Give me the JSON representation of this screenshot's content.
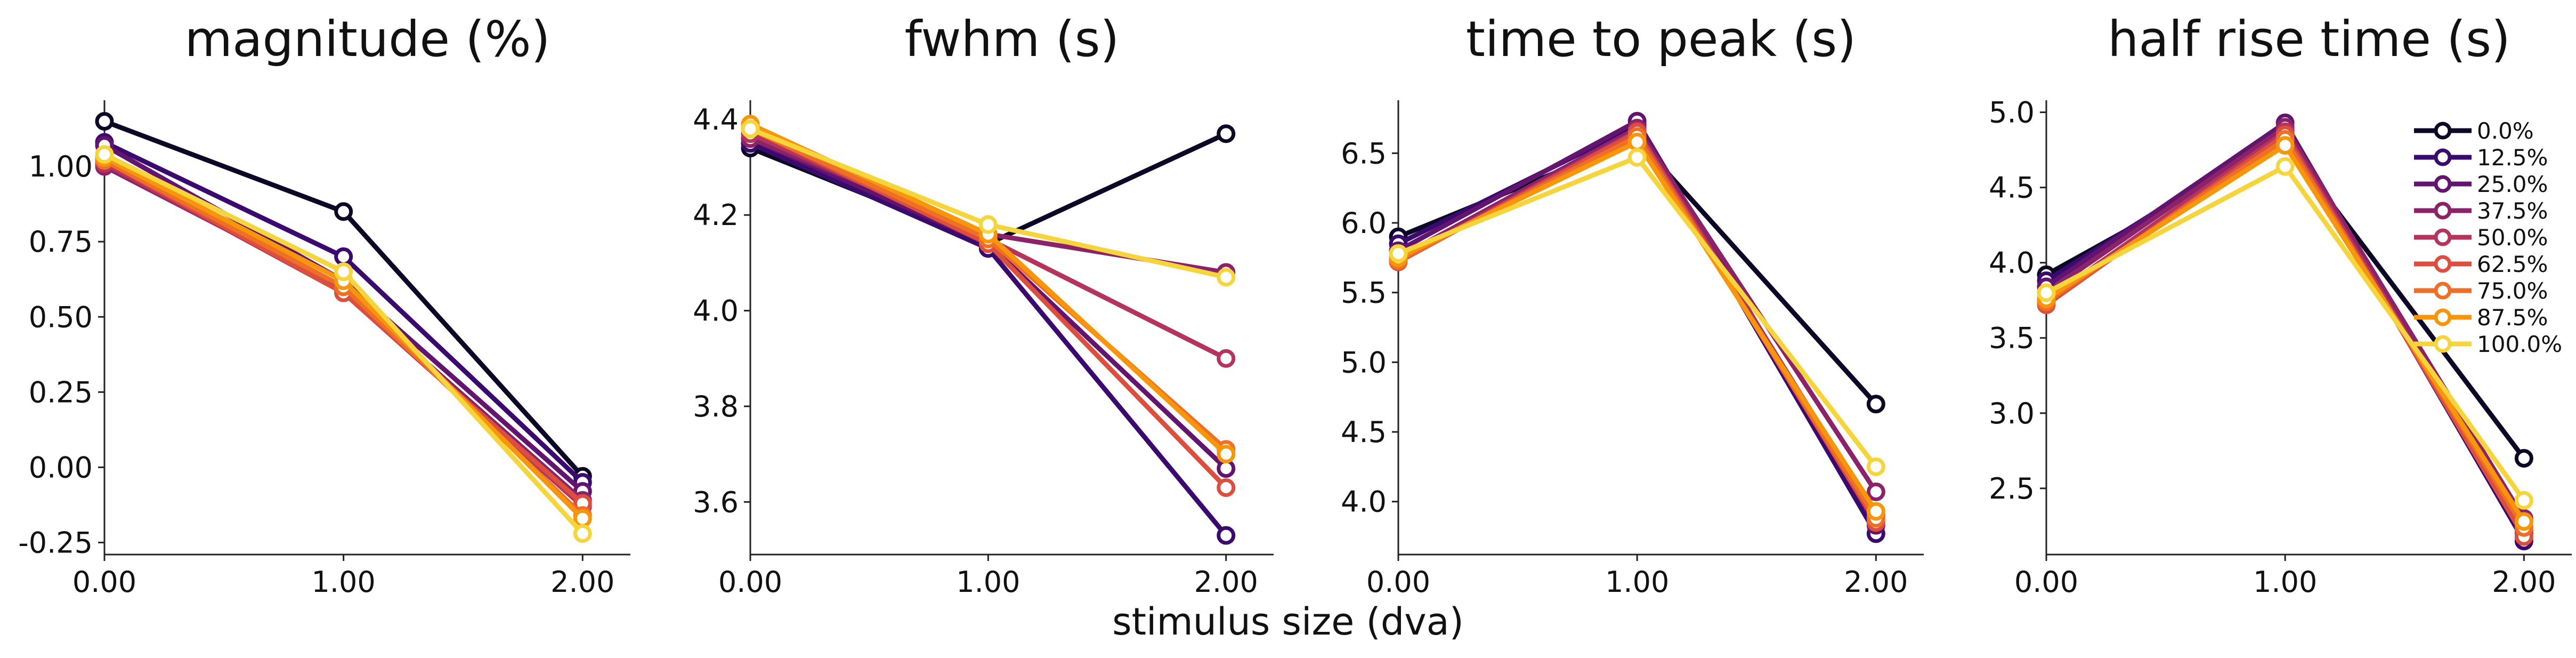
{
  "figure": {
    "xlabel": "stimulus size (dva)"
  },
  "chart_data": [
    {
      "type": "line",
      "title": "magnitude (%)",
      "x": [
        0,
        1,
        2
      ],
      "xticks": [
        "0.00",
        "1.00",
        "2.00"
      ],
      "yticks": [
        "-0.25",
        "0.00",
        "0.25",
        "0.50",
        "0.75",
        "1.00"
      ],
      "ylim": [
        -0.29,
        1.22
      ],
      "series": [
        {
          "name": "0.0%",
          "color": "#0c0826",
          "values": [
            1.15,
            0.85,
            -0.03
          ]
        },
        {
          "name": "12.5%",
          "color": "#3b0a6e",
          "values": [
            1.08,
            0.7,
            -0.05
          ]
        },
        {
          "name": "25.0%",
          "color": "#62146e",
          "values": [
            1.07,
            0.62,
            -0.08
          ]
        },
        {
          "name": "37.5%",
          "color": "#8c2369",
          "values": [
            1.0,
            0.59,
            -0.11
          ]
        },
        {
          "name": "50.0%",
          "color": "#b5345d",
          "values": [
            1.01,
            0.58,
            -0.13
          ]
        },
        {
          "name": "62.5%",
          "color": "#dc4f3f",
          "values": [
            1.02,
            0.58,
            -0.12
          ]
        },
        {
          "name": "75.0%",
          "color": "#ee6f25",
          "values": [
            1.02,
            0.6,
            -0.16
          ]
        },
        {
          "name": "87.5%",
          "color": "#f8960b",
          "values": [
            1.03,
            0.62,
            -0.17
          ]
        },
        {
          "name": "100.0%",
          "color": "#f5d53b",
          "values": [
            1.04,
            0.65,
            -0.22
          ]
        }
      ]
    },
    {
      "type": "line",
      "title": "fwhm (s)",
      "x": [
        0,
        1,
        2
      ],
      "xticks": [
        "0.00",
        "1.00",
        "2.00"
      ],
      "yticks": [
        "3.6",
        "3.8",
        "4.0",
        "4.2",
        "4.4"
      ],
      "ylim": [
        3.49,
        4.44
      ],
      "series": [
        {
          "name": "0.0%",
          "color": "#0c0826",
          "values": [
            4.34,
            4.14,
            4.37
          ]
        },
        {
          "name": "12.5%",
          "color": "#3b0a6e",
          "values": [
            4.35,
            4.13,
            3.53
          ]
        },
        {
          "name": "25.0%",
          "color": "#62146e",
          "values": [
            4.36,
            4.14,
            3.67
          ]
        },
        {
          "name": "37.5%",
          "color": "#8c2369",
          "values": [
            4.36,
            4.16,
            4.08
          ]
        },
        {
          "name": "50.0%",
          "color": "#b5345d",
          "values": [
            4.37,
            4.15,
            3.9
          ]
        },
        {
          "name": "62.5%",
          "color": "#dc4f3f",
          "values": [
            4.38,
            4.14,
            3.63
          ]
        },
        {
          "name": "75.0%",
          "color": "#ee6f25",
          "values": [
            4.38,
            4.15,
            3.71
          ]
        },
        {
          "name": "87.5%",
          "color": "#f8960b",
          "values": [
            4.39,
            4.16,
            3.7
          ]
        },
        {
          "name": "100.0%",
          "color": "#f5d53b",
          "values": [
            4.38,
            4.18,
            4.07
          ]
        }
      ]
    },
    {
      "type": "line",
      "title": "time to peak (s)",
      "x": [
        0,
        1,
        2
      ],
      "xticks": [
        "0.00",
        "1.00",
        "2.00"
      ],
      "yticks": [
        "4.0",
        "4.5",
        "5.0",
        "5.5",
        "6.0",
        "6.5"
      ],
      "ylim": [
        3.62,
        6.88
      ],
      "series": [
        {
          "name": "0.0%",
          "color": "#0c0826",
          "values": [
            5.9,
            6.6,
            4.7
          ]
        },
        {
          "name": "12.5%",
          "color": "#3b0a6e",
          "values": [
            5.85,
            6.7,
            3.77
          ]
        },
        {
          "name": "25.0%",
          "color": "#62146e",
          "values": [
            5.8,
            6.73,
            3.83
          ]
        },
        {
          "name": "37.5%",
          "color": "#8c2369",
          "values": [
            5.75,
            6.68,
            4.07
          ]
        },
        {
          "name": "50.0%",
          "color": "#b5345d",
          "values": [
            5.73,
            6.66,
            3.9
          ]
        },
        {
          "name": "62.5%",
          "color": "#dc4f3f",
          "values": [
            5.72,
            6.65,
            3.85
          ]
        },
        {
          "name": "75.0%",
          "color": "#ee6f25",
          "values": [
            5.73,
            6.62,
            3.88
          ]
        },
        {
          "name": "87.5%",
          "color": "#f8960b",
          "values": [
            5.75,
            6.58,
            3.93
          ]
        },
        {
          "name": "100.0%",
          "color": "#f5d53b",
          "values": [
            5.78,
            6.47,
            4.25
          ]
        }
      ]
    },
    {
      "type": "line",
      "title": "half rise time (s)",
      "x": [
        0,
        1,
        2
      ],
      "xticks": [
        "0.00",
        "1.00",
        "2.00"
      ],
      "yticks": [
        "2.5",
        "3.0",
        "3.5",
        "4.0",
        "4.5",
        "5.0"
      ],
      "ylim": [
        2.06,
        5.08
      ],
      "series": [
        {
          "name": "0.0%",
          "color": "#0c0826",
          "values": [
            3.92,
            4.8,
            2.7
          ]
        },
        {
          "name": "12.5%",
          "color": "#3b0a6e",
          "values": [
            3.88,
            4.88,
            2.15
          ]
        },
        {
          "name": "25.0%",
          "color": "#62146e",
          "values": [
            3.84,
            4.93,
            2.2
          ]
        },
        {
          "name": "37.5%",
          "color": "#8c2369",
          "values": [
            3.8,
            4.9,
            2.3
          ]
        },
        {
          "name": "50.0%",
          "color": "#b5345d",
          "values": [
            3.75,
            4.87,
            2.22
          ]
        },
        {
          "name": "62.5%",
          "color": "#dc4f3f",
          "values": [
            3.72,
            4.85,
            2.18
          ]
        },
        {
          "name": "75.0%",
          "color": "#ee6f25",
          "values": [
            3.74,
            4.82,
            2.24
          ]
        },
        {
          "name": "87.5%",
          "color": "#f8960b",
          "values": [
            3.76,
            4.78,
            2.28
          ]
        },
        {
          "name": "100.0%",
          "color": "#f5d53b",
          "values": [
            3.8,
            4.64,
            2.42
          ]
        }
      ]
    }
  ],
  "legend": {
    "placement": "top-right of last panel",
    "entries": [
      "0.0%",
      "12.5%",
      "25.0%",
      "37.5%",
      "50.0%",
      "62.5%",
      "75.0%",
      "87.5%",
      "100.0%"
    ]
  }
}
